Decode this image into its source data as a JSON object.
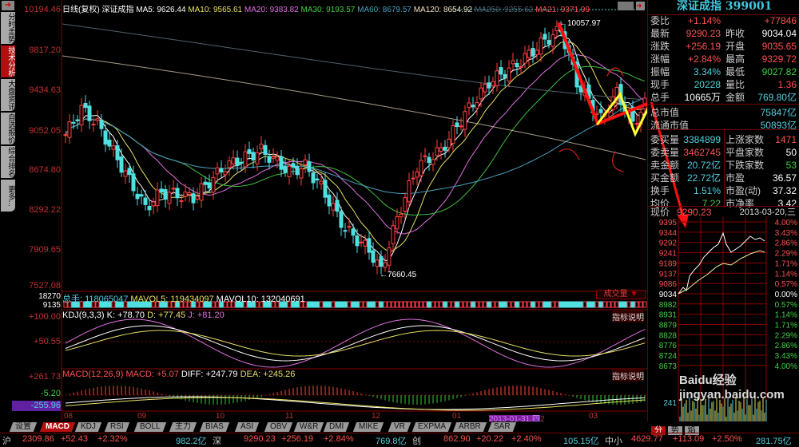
{
  "sidebar": {
    "tabs": [
      "分时走势",
      "技术分析",
      "大盘资讯",
      "自选报价",
      "综合排名",
      "更多..."
    ],
    "active": 1
  },
  "header": {
    "period": "日线(复权)",
    "name": "深证成指",
    "ma5": "MA5: 9626.44",
    "ma10": "MA10: 9565.61",
    "ma20": "MA20: 9383.82",
    "ma30": "MA30: 9193.57",
    "ma60": "MA60: 8679.57",
    "ma120": "MA120: 8654.92",
    "ma250": "MA250: 9255.62",
    "ma21": "MA21: 9371.09"
  },
  "price_axis": [
    "10194.46",
    "9817.20",
    "9434.63",
    "9052.05",
    "8674.80",
    "8292.22",
    "7909.65",
    "7527.08"
  ],
  "annotations": {
    "high": "10057.97",
    "low": "7660.45"
  },
  "volume": {
    "total": "总手: 118065047",
    "mavol5": "MAVOL5: 119434097",
    "mavol10": "MAVOL10: 132040691",
    "axis_top": "18270",
    "axis_bottom": "9135",
    "selector": "成交量"
  },
  "kdj": {
    "title": "KDJ(9,3,3)",
    "k": "K: +78.70",
    "d": "D: +77.45",
    "j": "J: +81.20",
    "axis": [
      "+100.00",
      "+50.55"
    ],
    "help": "指标说明"
  },
  "macd": {
    "title": "MACD(12,26,9)",
    "macd": "MACD: +5.07",
    "diff": "DIFF: +247.79",
    "dea": "DEA: +245.26",
    "axis": [
      "+261.73",
      "-5.20",
      "-255.96"
    ],
    "help": "指标说明"
  },
  "date_axis": [
    "08",
    "09",
    "10",
    "11",
    "12",
    "01",
    "03"
  ],
  "cursor_date": "2013-01-31,四",
  "cursor_suffix": "2",
  "indicator_tabs": [
    "设置",
    "MACD",
    "KDJ",
    "RSI",
    "BOLL",
    "主力",
    "BIAS",
    "ASI",
    "OBV",
    "W&R",
    "DMI",
    "MIKE",
    "VR",
    "EXPMA",
    "ARBR",
    "SAR"
  ],
  "active_indicator": "MACD",
  "quote": {
    "title": "深证成指 399001",
    "rows": [
      {
        "l": "委比",
        "v": "+1.14%",
        "l2": "",
        "v2": "+77846"
      },
      {
        "l": "最新",
        "v": "9290.23",
        "l2": "昨收",
        "v2": "9034.04"
      },
      {
        "l": "涨跌",
        "v": "+256.19",
        "l2": "开盘",
        "v2": "9035.65"
      },
      {
        "l": "涨幅",
        "v": "+2.84%",
        "l2": "最高",
        "v2": "9329.72"
      },
      {
        "l": "振幅",
        "v": "3.34%",
        "l2": "最低",
        "v2": "9027.82"
      },
      {
        "l": "现手",
        "v": "20228",
        "l2": "量比",
        "v2": "1.36"
      },
      {
        "l": "总手",
        "v": "10665万",
        "l2": "金额",
        "v2": "769.80亿"
      },
      {
        "l": "总市值",
        "v": "",
        "l2": "",
        "v2": "75847亿"
      },
      {
        "l": "流通市值",
        "v": "",
        "l2": "",
        "v2": "50893亿"
      },
      {
        "l": "委买量",
        "v": "3384899",
        "l2": "上涨家数",
        "v2": "1471"
      },
      {
        "l": "委卖量",
        "v": "3462745",
        "l2": "平盘家数",
        "v2": "50"
      },
      {
        "l": "卖金额",
        "v": "20.72亿",
        "l2": "下跌家数",
        "v2": "53"
      },
      {
        "l": "买金额",
        "v": "22.72亿",
        "l2": "市盈",
        "v2": "36.57"
      },
      {
        "l": "换手",
        "v": "1.51%",
        "l2": "市盈(动)",
        "v2": "37.32"
      },
      {
        "l": "均价",
        "v": "7.22",
        "l2": "市净率",
        "v2": "3.42"
      }
    ],
    "now_label": "现价",
    "now_value": "9290.23",
    "date": "2013-03-20,三"
  },
  "intraday": {
    "left_axis": [
      "9395",
      "9344",
      "9292",
      "9241",
      "9189",
      "9137",
      "9086",
      "9034",
      "8982",
      "8931",
      "8879",
      "8828",
      "8776",
      "8724",
      "8673"
    ],
    "right_axis": [
      "4.00%",
      "3.43%",
      "2.86%",
      "2.29%",
      "1.71%",
      "1.14%",
      "0.57%",
      "0.00%",
      "0.57%",
      "1.14%",
      "1.71%",
      "2.29%",
      "2.86%",
      "3.43%",
      "4.00%"
    ],
    "vol_label": "241",
    "tabs": [
      "分",
      "势",
      "焰"
    ]
  },
  "status": {
    "sh": "沪",
    "sh_v": "2309.86",
    "sh_c": "+52.43",
    "sh_p": "+2.32%",
    "sh_a": "982.2亿",
    "sz": "深",
    "sz_v": "9290.23",
    "sz_c": "+256.19",
    "sz_p": "+2.84%",
    "sz_a": "769.8亿",
    "cy": "创",
    "cy_v": "862.90",
    "cy_c": "+20.22",
    "cy_p": "+2.40%",
    "cy_a": "105.15亿",
    "zx": "中小",
    "zx_v": "4629.77",
    "zx_c": "+113.09",
    "zx_p": "+2.50%",
    "zx_a": "281.75亿"
  },
  "watermark": "Baidu经验 jingyan.baidu.com",
  "chart_data": {
    "type": "candlestick",
    "ylim": [
      7527.08,
      10194.46
    ],
    "close_waypoints": [
      [
        0,
        9000
      ],
      [
        4,
        9250
      ],
      [
        8,
        9100
      ],
      [
        14,
        8700
      ],
      [
        20,
        8300
      ],
      [
        24,
        8450
      ],
      [
        32,
        8400
      ],
      [
        40,
        8700
      ],
      [
        49,
        8850
      ],
      [
        56,
        8650
      ],
      [
        60,
        8700
      ],
      [
        64,
        8500
      ],
      [
        70,
        8100
      ],
      [
        76,
        7900
      ],
      [
        79,
        7700
      ],
      [
        83,
        8200
      ],
      [
        88,
        8700
      ],
      [
        94,
        8850
      ],
      [
        100,
        9200
      ],
      [
        106,
        9500
      ],
      [
        114,
        9700
      ],
      [
        120,
        9900
      ],
      [
        124,
        10000
      ],
      [
        128,
        9500
      ],
      [
        134,
        9150
      ],
      [
        138,
        9400
      ],
      [
        142,
        9100
      ],
      [
        145,
        9290
      ]
    ],
    "colors": {
      "up": "#ff4040",
      "down": "#50e0e0",
      "ma5": "#ffffff",
      "ma10": "#e8e060",
      "ma20": "#e070e0",
      "ma30": "#40c040",
      "ma60": "#4aa0c0"
    }
  }
}
